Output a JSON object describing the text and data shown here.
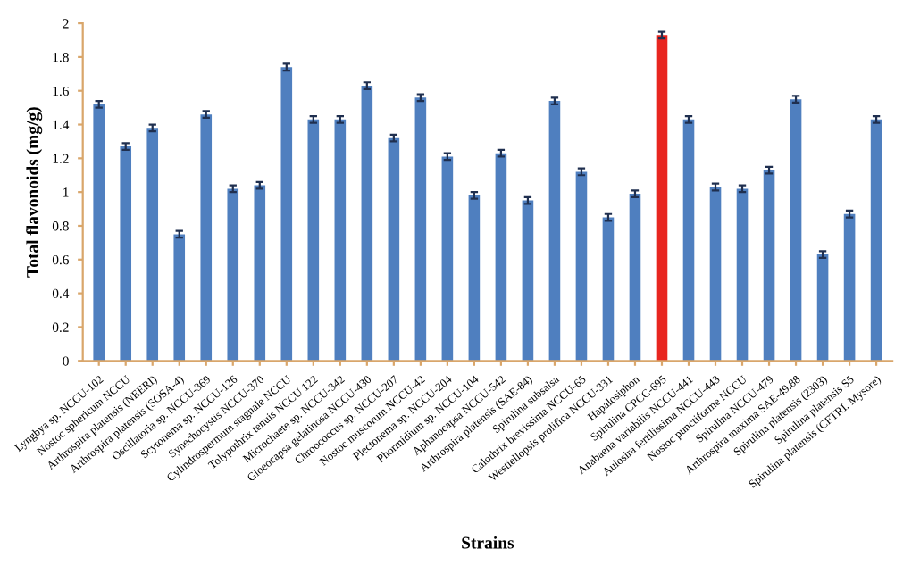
{
  "chart_data": {
    "type": "bar",
    "xlabel": "Strains",
    "ylabel": "Total flavonoids (mg/g)",
    "categories": [
      "Lyngbya sp. NCCU-102",
      "Nostoc sphericum NCCU",
      "Arthrospira platensis (NEERI)",
      "Arthrospira platensis (SOSA-4)",
      "Oscillatoria sp. NCCU-369",
      "Scytonema sp. NCCU-126",
      "Synechocystis NCCU-370",
      "Cylindrospermum stagnale NCCU",
      "Tolypothrix tenuis NCCU 122",
      "Microchaete sp. NCCU-342",
      "Gloeocapsa gelatinosa NCCU-430",
      "Chroococcus sp. NCCU-207",
      "Nostoc muscorum NCCU-42",
      "Plectonema sp. NCCU-204",
      "Phormidium sp. NCCU-104",
      "Aphanocapsa NCCU-542",
      "Arthrospira platensis (SAE-84)",
      "Spirulina subsalsa",
      "Calothrix brevissima NCCU-65",
      "Westiellopsis prolifica NCCU-331",
      "Hapalosiphon",
      "Spirulina CPCC-695",
      "Anabaena variabilis NCCU-441",
      "Aulosira fertilissima NCCU-443",
      "Nostoc punctiforme NCCU",
      "Spirulina NCCU-479",
      "Arthrospira maxima SAE-49.88",
      "Spirulina platensis (2303)",
      "Spirulina platensis S5",
      "Spirulina platensis (CFTRI, Mysore)"
    ],
    "values": [
      1.52,
      1.27,
      1.38,
      0.75,
      1.46,
      1.02,
      1.04,
      1.74,
      1.43,
      1.43,
      1.63,
      1.32,
      1.56,
      1.21,
      0.98,
      1.23,
      0.95,
      1.54,
      1.12,
      0.85,
      0.99,
      1.93,
      1.43,
      1.03,
      1.02,
      1.13,
      1.55,
      0.63,
      0.87,
      1.43
    ],
    "colors": [
      "#4f7fbf",
      "#4f7fbf",
      "#4f7fbf",
      "#4f7fbf",
      "#4f7fbf",
      "#4f7fbf",
      "#4f7fbf",
      "#4f7fbf",
      "#4f7fbf",
      "#4f7fbf",
      "#4f7fbf",
      "#4f7fbf",
      "#4f7fbf",
      "#4f7fbf",
      "#4f7fbf",
      "#4f7fbf",
      "#4f7fbf",
      "#4f7fbf",
      "#4f7fbf",
      "#4f7fbf",
      "#4f7fbf",
      "#e8251f",
      "#4f7fbf",
      "#4f7fbf",
      "#4f7fbf",
      "#4f7fbf",
      "#4f7fbf",
      "#4f7fbf",
      "#4f7fbf",
      "#4f7fbf"
    ],
    "errors": [
      0.02,
      0.02,
      0.02,
      0.02,
      0.02,
      0.02,
      0.02,
      0.02,
      0.02,
      0.02,
      0.02,
      0.02,
      0.02,
      0.02,
      0.02,
      0.02,
      0.02,
      0.02,
      0.02,
      0.02,
      0.02,
      0.02,
      0.02,
      0.02,
      0.02,
      0.02,
      0.02,
      0.02,
      0.02,
      0.02
    ],
    "ylim": [
      0,
      2
    ],
    "yticks": [
      0,
      0.2,
      0.4,
      0.6,
      0.8,
      {
        "value": 1,
        "label": "1"
      },
      1.2,
      1.4,
      1.6,
      1.8,
      {
        "value": 2,
        "label": "2"
      }
    ],
    "grid": false,
    "legend": false
  }
}
